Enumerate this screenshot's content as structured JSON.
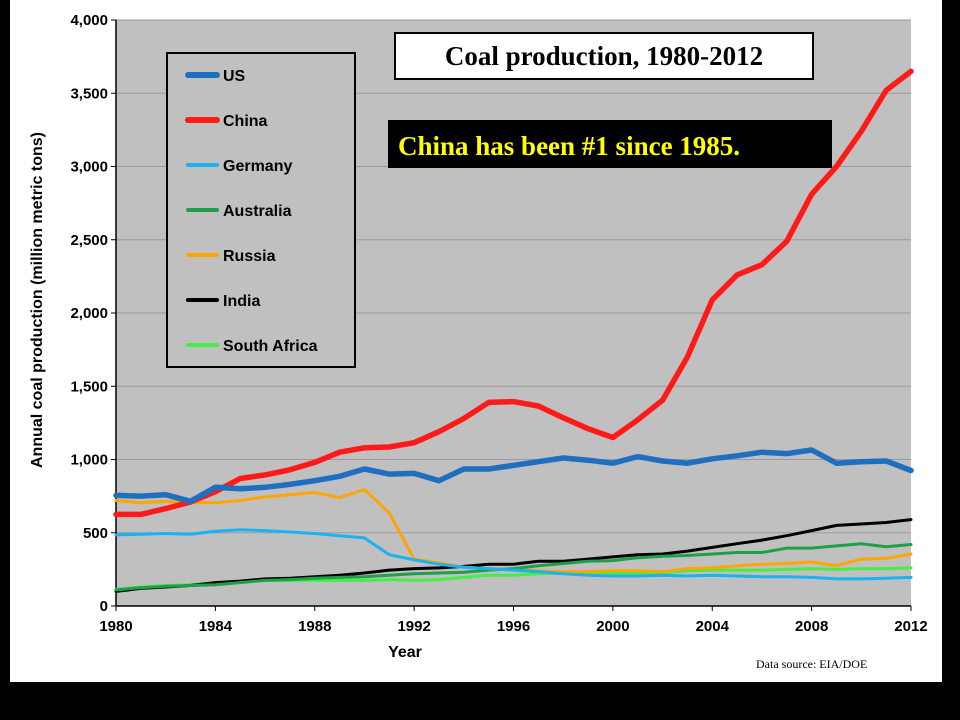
{
  "chart_data": {
    "type": "line",
    "title": "Coal production, 1980-2012",
    "annotation": "China has been #1 since 1985.",
    "source": "Data source: EIA/DOE",
    "xlabel": "Year",
    "ylabel": "Annual coal production (million metric tons)",
    "xlim": [
      1980,
      2012
    ],
    "ylim": [
      0,
      4000
    ],
    "xticks": [
      1980,
      1984,
      1988,
      1992,
      1996,
      2000,
      2004,
      2008,
      2012
    ],
    "yticks": [
      0,
      500,
      1000,
      1500,
      2000,
      2500,
      3000,
      3500,
      4000
    ],
    "ytick_labels": [
      "0",
      "500",
      "1,000",
      "1,500",
      "2,000",
      "2,500",
      "3,000",
      "3,500",
      "4,000"
    ],
    "grid": "horizontal",
    "legend_position": "top-left",
    "plot_background": "#c0c0c0",
    "x": [
      1980,
      1981,
      1982,
      1983,
      1984,
      1985,
      1986,
      1987,
      1988,
      1989,
      1990,
      1991,
      1992,
      1993,
      1994,
      1995,
      1996,
      1997,
      1998,
      1999,
      2000,
      2001,
      2002,
      2003,
      2004,
      2005,
      2006,
      2007,
      2008,
      2009,
      2010,
      2011,
      2012
    ],
    "series": [
      {
        "name": "US",
        "color": "#1f6fc0",
        "values": [
          755,
          750,
          760,
          715,
          810,
          800,
          810,
          830,
          855,
          885,
          935,
          900,
          905,
          855,
          935,
          935,
          960,
          985,
          1010,
          995,
          975,
          1020,
          990,
          975,
          1005,
          1025,
          1050,
          1040,
          1065,
          975,
          985,
          990,
          925
        ]
      },
      {
        "name": "China",
        "color": "#ff1a1a",
        "values": [
          625,
          625,
          665,
          710,
          780,
          870,
          895,
          930,
          980,
          1050,
          1080,
          1085,
          1115,
          1190,
          1280,
          1390,
          1395,
          1365,
          1285,
          1210,
          1150,
          1270,
          1405,
          1700,
          2090,
          2260,
          2330,
          2490,
          2810,
          3000,
          3240,
          3520,
          3650
        ]
      },
      {
        "name": "Germany",
        "color": "#1ab2f0",
        "values": [
          485,
          490,
          495,
          490,
          510,
          520,
          515,
          505,
          495,
          480,
          465,
          350,
          315,
          285,
          265,
          255,
          245,
          235,
          220,
          210,
          205,
          205,
          210,
          205,
          210,
          205,
          200,
          200,
          195,
          185,
          185,
          190,
          195
        ]
      },
      {
        "name": "Australia",
        "color": "#1ea04a",
        "values": [
          110,
          125,
          135,
          140,
          145,
          160,
          175,
          180,
          190,
          195,
          200,
          210,
          220,
          225,
          230,
          245,
          255,
          275,
          290,
          305,
          310,
          330,
          340,
          345,
          355,
          365,
          365,
          395,
          395,
          410,
          425,
          405,
          420
        ]
      },
      {
        "name": "Russia",
        "color": "#ffa500",
        "values": [
          720,
          705,
          715,
          705,
          705,
          720,
          745,
          760,
          775,
          740,
          795,
          635,
          320,
          295,
          265,
          255,
          250,
          240,
          235,
          235,
          240,
          240,
          235,
          255,
          260,
          275,
          285,
          290,
          300,
          275,
          320,
          325,
          355
        ]
      },
      {
        "name": "India",
        "color": "#000000",
        "values": [
          100,
          120,
          130,
          140,
          160,
          170,
          185,
          190,
          200,
          210,
          225,
          245,
          255,
          260,
          270,
          285,
          285,
          305,
          305,
          320,
          335,
          350,
          355,
          375,
          400,
          425,
          450,
          480,
          515,
          550,
          560,
          570,
          590
        ]
      },
      {
        "name": "South Africa",
        "color": "#44ee44",
        "values": [
          115,
          130,
          140,
          145,
          160,
          170,
          175,
          175,
          175,
          175,
          175,
          180,
          175,
          180,
          195,
          210,
          210,
          220,
          225,
          225,
          225,
          225,
          225,
          240,
          245,
          245,
          245,
          250,
          255,
          250,
          255,
          255,
          260
        ]
      }
    ]
  }
}
